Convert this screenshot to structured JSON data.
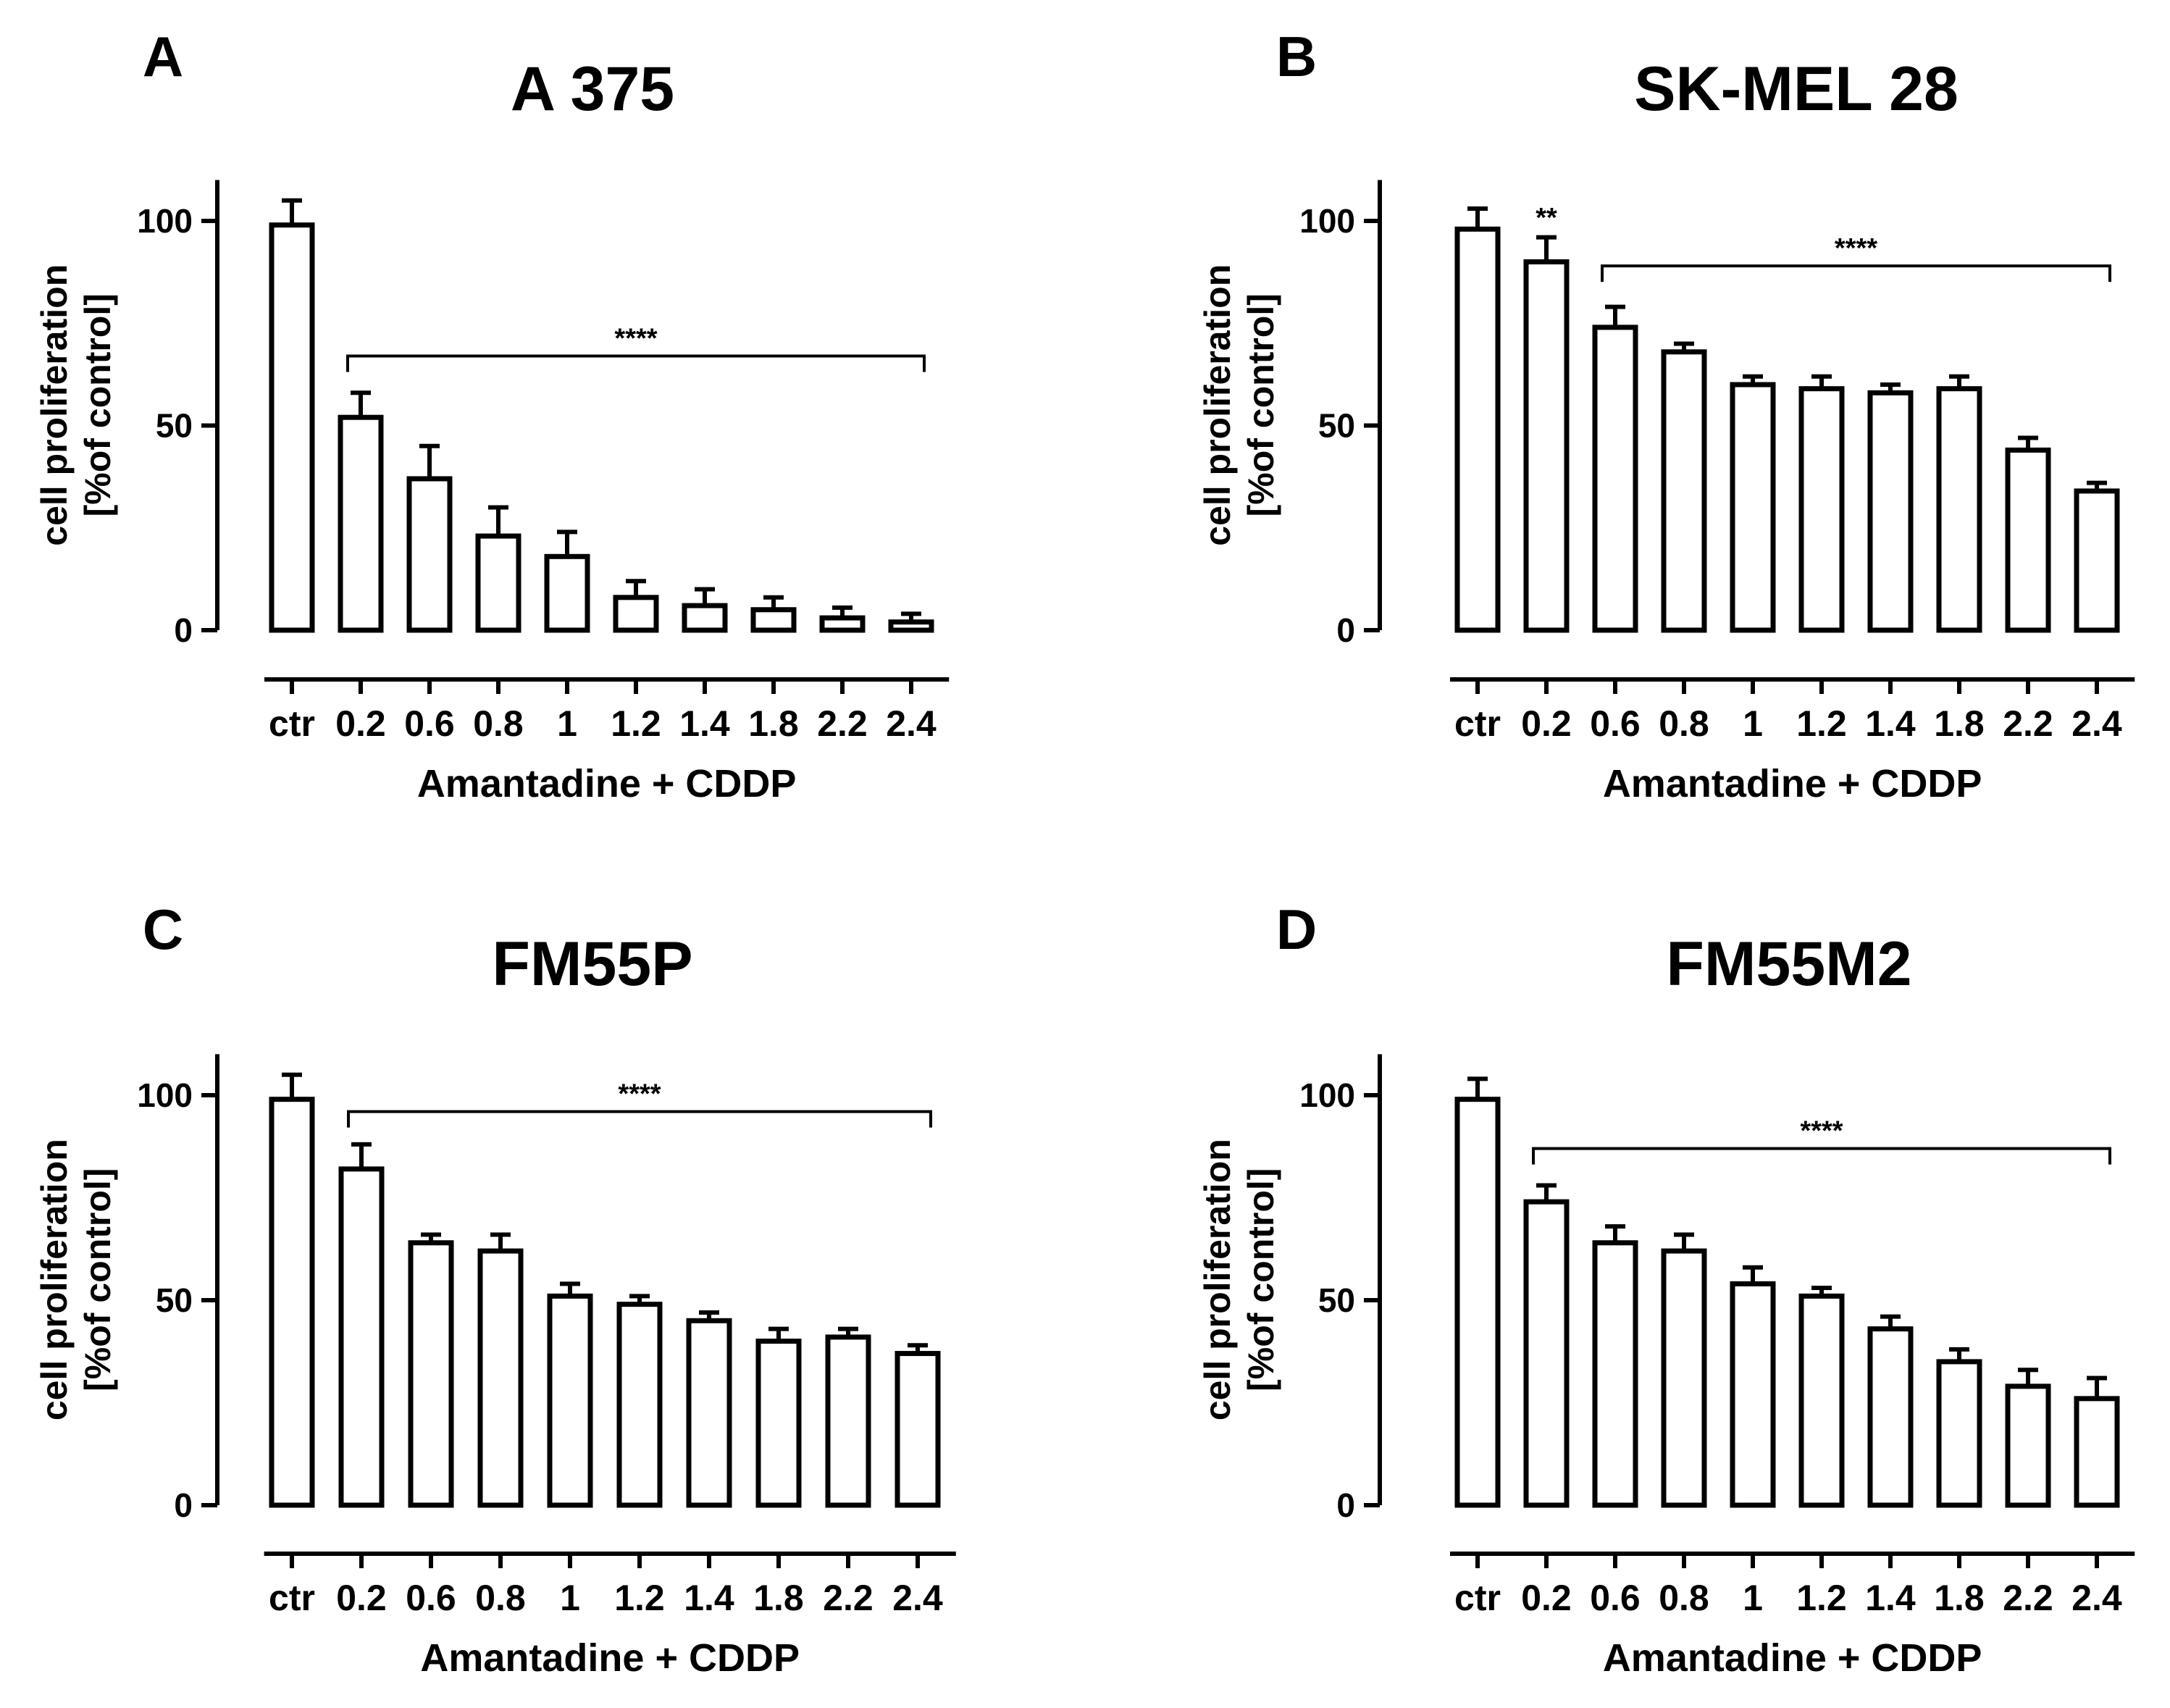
{
  "chart_data": [
    {
      "type": "bar",
      "panel_label": "A",
      "title": "A 375",
      "xlabel": "Amantadine + CDDP",
      "ylabel_lines": [
        "cell proliferation",
        "[%of control]"
      ],
      "ylim": [
        0,
        110
      ],
      "yticks": [
        0,
        50,
        100
      ],
      "categories": [
        "ctr",
        "0.2",
        "0.6",
        "0.8",
        "1",
        "1.2",
        "1.4",
        "1.8",
        "2.2",
        "2.4"
      ],
      "values": [
        99,
        52,
        37,
        23,
        18,
        8,
        6,
        5,
        3,
        2
      ],
      "errors": [
        6,
        6,
        8,
        7,
        6,
        4,
        4,
        3,
        2.5,
        2
      ],
      "significance": [
        {
          "label": "****",
          "from": "0.2",
          "to": "2.4",
          "y": 67
        }
      ]
    },
    {
      "type": "bar",
      "panel_label": "B",
      "title": "SK-MEL 28",
      "xlabel": "Amantadine + CDDP",
      "ylabel_lines": [
        "cell proliferation",
        "[%of control]"
      ],
      "ylim": [
        0,
        110
      ],
      "yticks": [
        0,
        50,
        100
      ],
      "categories": [
        "ctr",
        "0.2",
        "0.6",
        "0.8",
        "1",
        "1.2",
        "1.4",
        "1.8",
        "2.2",
        "2.4"
      ],
      "values": [
        98,
        90,
        74,
        68,
        60,
        59,
        58,
        59,
        44,
        34
      ],
      "errors": [
        5,
        6,
        5,
        2,
        2,
        3,
        2,
        3,
        3,
        2
      ],
      "significance": [
        {
          "label": "**",
          "over": "0.2",
          "y": 100
        },
        {
          "label": "****",
          "from": "0.6",
          "to": "2.4",
          "y": 89
        }
      ]
    },
    {
      "type": "bar",
      "panel_label": "C",
      "title": "FM55P",
      "xlabel": "Amantadine + CDDP",
      "ylabel_lines": [
        "cell proliferation",
        "[%of control]"
      ],
      "ylim": [
        0,
        110
      ],
      "yticks": [
        0,
        50,
        100
      ],
      "categories": [
        "ctr",
        "0.2",
        "0.6",
        "0.8",
        "1",
        "1.2",
        "1.4",
        "1.8",
        "2.2",
        "2.4"
      ],
      "values": [
        99,
        82,
        64,
        62,
        51,
        49,
        45,
        40,
        41,
        37
      ],
      "errors": [
        6,
        6,
        2,
        4,
        3,
        2,
        2,
        3,
        2,
        2
      ],
      "significance": [
        {
          "label": "****",
          "from": "0.2",
          "to": "2.4",
          "y": 96
        }
      ]
    },
    {
      "type": "bar",
      "panel_label": "D",
      "title": "FM55M2",
      "xlabel": "Amantadine + CDDP",
      "ylabel_lines": [
        "cell proliferation",
        "[%of control]"
      ],
      "ylim": [
        0,
        110
      ],
      "yticks": [
        0,
        50,
        100
      ],
      "categories": [
        "ctr",
        "0.2",
        "0.6",
        "0.8",
        "1",
        "1.2",
        "1.4",
        "1.8",
        "2.2",
        "2.4"
      ],
      "values": [
        99,
        74,
        64,
        62,
        54,
        51,
        43,
        35,
        29,
        26
      ],
      "errors": [
        5,
        4,
        4,
        4,
        4,
        2,
        3,
        3,
        4,
        5
      ],
      "significance": [
        {
          "label": "****",
          "from": "0.2",
          "to": "2.4",
          "y": 87
        }
      ]
    }
  ]
}
